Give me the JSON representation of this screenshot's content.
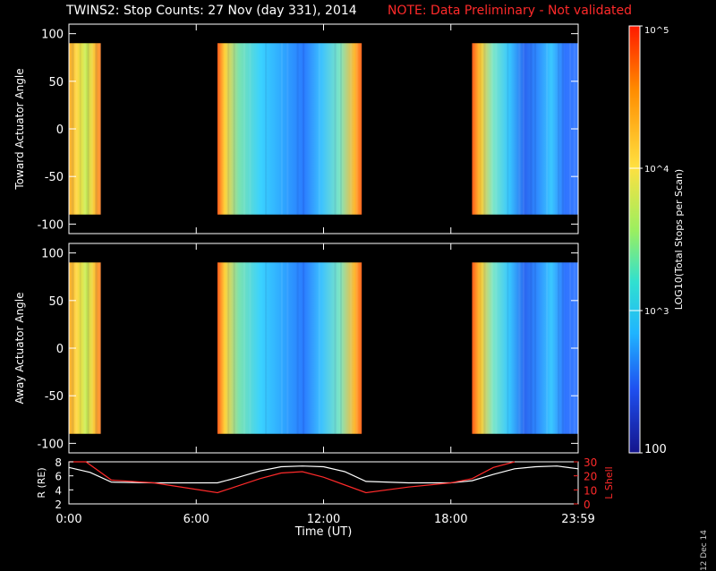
{
  "title": "TWINS2: Stop Counts: 27 Nov (day 331), 2014",
  "note": "NOTE: Data Preliminary - Not validated",
  "date_stamp": "12 Dec 14",
  "colorbar": {
    "label": "LOG10(Total Stops per Scan)",
    "ticks": [
      "10^5",
      "10^4",
      "10^3",
      "100"
    ],
    "range": [
      100,
      100000
    ],
    "scale": "log"
  },
  "chart_data": [
    {
      "type": "heatmap",
      "panel": "toward",
      "ylabel": "Toward Actuator Angle",
      "ylim": [
        -110,
        110
      ],
      "yticks": [
        "100",
        "50",
        "0",
        "-50",
        "-100"
      ],
      "data_y_range": [
        -90,
        90
      ],
      "data_blocks_hours": [
        [
          0.0,
          1.5
        ],
        [
          7.0,
          13.8
        ],
        [
          19.0,
          23.98
        ]
      ],
      "colorscale": "log counts 100 to 1e5",
      "dominant_colors": [
        "#ffcc33",
        "#39d6ff",
        "#2a7bff",
        "#ff5a1a"
      ]
    },
    {
      "type": "heatmap",
      "panel": "away",
      "ylabel": "Away Actuator Angle",
      "ylim": [
        -110,
        110
      ],
      "yticks": [
        "100",
        "50",
        "0",
        "-50",
        "-100"
      ],
      "data_y_range": [
        -90,
        90
      ],
      "data_blocks_hours": [
        [
          0.0,
          1.5
        ],
        [
          7.0,
          13.8
        ],
        [
          19.0,
          23.98
        ]
      ],
      "colorscale": "log counts 100 to 1e5",
      "dominant_colors": [
        "#ffcc33",
        "#39d6ff",
        "#2a7bff",
        "#ff5a1a"
      ]
    },
    {
      "type": "line",
      "panel": "orbit",
      "xlabel": "Time (UT)",
      "xticks": [
        "0:00",
        "6:00",
        "12:00",
        "18:00",
        "23:59"
      ],
      "xlim_hours": [
        0,
        24
      ],
      "ylabel_left": "R (RE)",
      "yticks_left": [
        "8",
        "6",
        "4",
        "2"
      ],
      "ylim_left": [
        2,
        8
      ],
      "ylabel_right": "L Shell",
      "yticks_right": [
        "30",
        "20",
        "10",
        "0"
      ],
      "ylim_right": [
        0,
        30
      ],
      "series": [
        {
          "name": "R (RE)",
          "color": "#ffffff",
          "x": [
            0.0,
            1.0,
            2.0,
            4.0,
            6.0,
            7.0,
            8.0,
            9.0,
            10.0,
            11.0,
            12.0,
            13.0,
            14.0,
            16.0,
            18.0,
            19.0,
            20.0,
            21.0,
            22.0,
            23.0,
            24.0
          ],
          "y": [
            7.2,
            6.5,
            5.1,
            5.0,
            5.0,
            5.0,
            5.8,
            6.7,
            7.3,
            7.4,
            7.3,
            6.6,
            5.2,
            5.0,
            5.0,
            5.3,
            6.2,
            7.0,
            7.3,
            7.4,
            7.0
          ]
        },
        {
          "name": "L Shell",
          "color": "#ff2a2a",
          "x": [
            0.0,
            0.8,
            2.0,
            4.0,
            7.0,
            9.0,
            10.0,
            11.0,
            12.0,
            14.0,
            16.0,
            18.0,
            19.0,
            20.0,
            21.0
          ],
          "y": [
            30,
            30,
            17,
            15,
            8,
            18,
            22,
            23,
            19,
            8,
            12,
            15,
            18,
            26,
            32
          ]
        }
      ]
    }
  ]
}
